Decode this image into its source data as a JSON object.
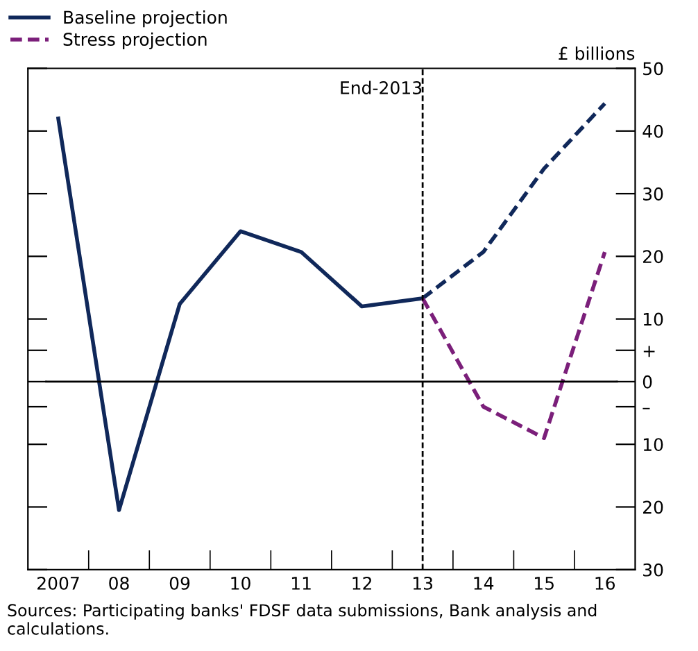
{
  "chart_data": {
    "type": "line",
    "categories": [
      "2007",
      "08",
      "09",
      "10",
      "11",
      "12",
      "13",
      "14",
      "15",
      "16"
    ],
    "series": [
      {
        "name": "Baseline projection",
        "color": "#10285a",
        "line_style": "solid",
        "values": [
          42,
          -20.5,
          12.4,
          24,
          20.7,
          12,
          13.3,
          null,
          null,
          null
        ]
      },
      {
        "color": "#10285a",
        "line_style": "dashed",
        "values": [
          null,
          null,
          null,
          null,
          null,
          null,
          13.3,
          20.7,
          34,
          44.4
        ]
      },
      {
        "name": "Stress projection",
        "color": "#7b1f7a",
        "line_style": "dashed",
        "values": [
          null,
          null,
          null,
          null,
          null,
          null,
          13.3,
          -4,
          -9,
          20.7
        ]
      }
    ],
    "ylabel": "£ billions",
    "ylim": [
      -30,
      50
    ],
    "yticks": [
      50,
      40,
      30,
      20,
      10,
      {
        "value": 5,
        "label": "+"
      },
      0,
      {
        "value": -4,
        "label": "–"
      },
      {
        "value": -10,
        "label": "10"
      },
      {
        "value": -20,
        "label": "20"
      },
      {
        "value": -30,
        "label": "30"
      }
    ],
    "ref_lines": [
      {
        "axis": "y",
        "value": 0,
        "label": null,
        "color": "#000000",
        "line_style": "solid"
      },
      {
        "axis": "x",
        "value": "13",
        "label": "End-2013",
        "color": "#000000",
        "line_style": "dashed"
      }
    ],
    "annotations": [
      "Sources: Participating banks' FDSF data submissions, Bank analysis and calculations."
    ],
    "legend": "top left",
    "grid": false,
    "marker": "none"
  }
}
